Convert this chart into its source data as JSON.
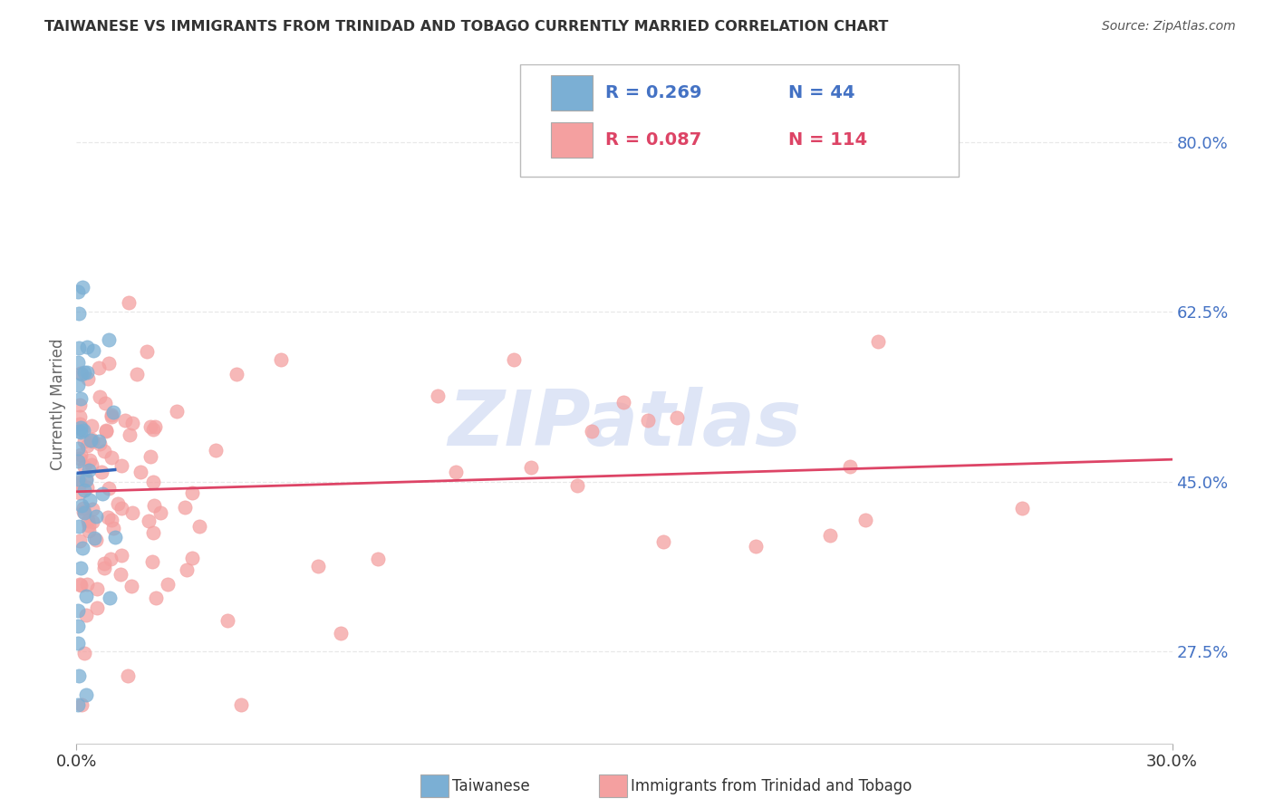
{
  "title": "TAIWANESE VS IMMIGRANTS FROM TRINIDAD AND TOBAGO CURRENTLY MARRIED CORRELATION CHART",
  "source_text": "Source: ZipAtlas.com",
  "ylabel": "Currently Married",
  "x_min": 0.0,
  "x_max": 0.3,
  "y_min": 0.18,
  "y_max": 0.88,
  "y_ticks_right": [
    0.275,
    0.45,
    0.625,
    0.8
  ],
  "y_tick_labels_right": [
    "27.5%",
    "45.0%",
    "62.5%",
    "80.0%"
  ],
  "blue_color": "#7bafd4",
  "pink_color": "#f4a0a0",
  "blue_line_color": "#3366bb",
  "pink_line_color": "#dd4466",
  "legend_R_blue": "0.269",
  "legend_N_blue": "44",
  "legend_R_pink": "0.087",
  "legend_N_pink": "114",
  "watermark": "ZIPatlas",
  "watermark_color": "#c8d4f0",
  "legend_label_blue": "Taiwanese",
  "legend_label_pink": "Immigrants from Trinidad and Tobago",
  "grid_color": "#e8e8e8",
  "background_color": "#ffffff",
  "title_color": "#333333",
  "source_color": "#555555",
  "right_tick_color": "#4472c4",
  "ylabel_color": "#666666"
}
